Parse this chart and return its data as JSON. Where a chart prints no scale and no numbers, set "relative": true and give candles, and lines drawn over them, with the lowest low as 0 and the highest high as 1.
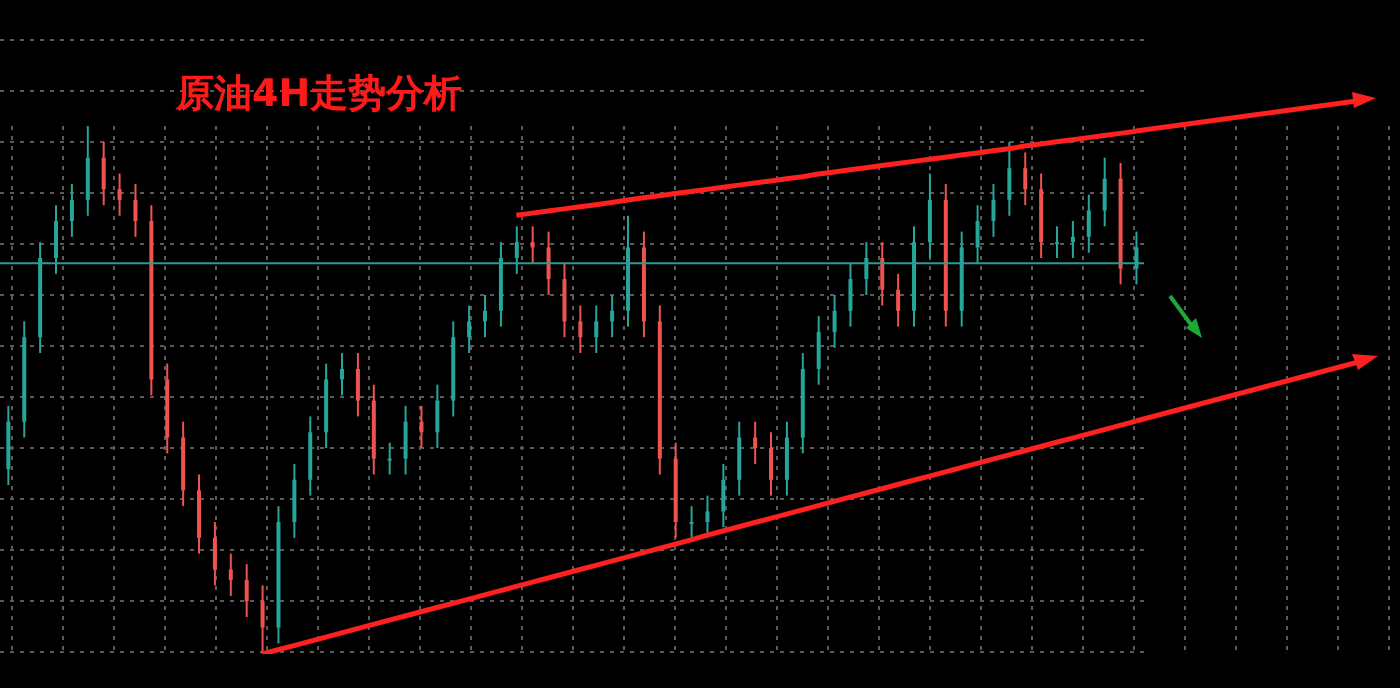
{
  "chart_data": {
    "type": "candlestick",
    "title": "原油4H走势分析",
    "relative": true,
    "grid": true,
    "categories": [
      null,
      null,
      null,
      null,
      null,
      null,
      null,
      null,
      null,
      null,
      null,
      null,
      null,
      null,
      null,
      null,
      null,
      null,
      null,
      null,
      null,
      null,
      null,
      null,
      null,
      null,
      null,
      null,
      null,
      null,
      null,
      null,
      null,
      null,
      null,
      null,
      null,
      null,
      null,
      null,
      null,
      null,
      null,
      null,
      null,
      null,
      null,
      null,
      null,
      null,
      null,
      null,
      null,
      null,
      null,
      null,
      null,
      null,
      null,
      null,
      null,
      null,
      null,
      null,
      null,
      null,
      null,
      null,
      null,
      null,
      null,
      null
    ],
    "ohlc": [
      [
        0.35,
        0.47,
        0.32,
        0.44
      ],
      [
        0.44,
        0.63,
        0.41,
        0.6
      ],
      [
        0.6,
        0.78,
        0.57,
        0.75
      ],
      [
        0.75,
        0.85,
        0.72,
        0.82
      ],
      [
        0.82,
        0.89,
        0.79,
        0.86
      ],
      [
        0.86,
        1,
        0.83,
        0.94
      ],
      [
        0.94,
        0.97,
        0.85,
        0.88
      ],
      [
        0.88,
        0.91,
        0.83,
        0.86
      ],
      [
        0.86,
        0.89,
        0.79,
        0.82
      ],
      [
        0.82,
        0.85,
        0.49,
        0.52
      ],
      [
        0.52,
        0.55,
        0.38,
        0.41
      ],
      [
        0.41,
        0.44,
        0.28,
        0.31
      ],
      [
        0.31,
        0.34,
        0.19,
        0.22
      ],
      [
        0.22,
        0.25,
        0.13,
        0.16
      ],
      [
        0.16,
        0.19,
        0.11,
        0.14
      ],
      [
        0.14,
        0.17,
        0.07,
        0.1
      ],
      [
        0.1,
        0.13,
        0,
        0.05
      ],
      [
        0.05,
        0.28,
        0.02,
        0.25
      ],
      [
        0.25,
        0.36,
        0.22,
        0.33
      ],
      [
        0.33,
        0.45,
        0.3,
        0.42
      ],
      [
        0.42,
        0.55,
        0.39,
        0.52
      ],
      [
        0.52,
        0.57,
        0.49,
        0.54
      ],
      [
        0.54,
        0.57,
        0.45,
        0.48
      ],
      [
        0.48,
        0.51,
        0.34,
        0.37
      ],
      [
        0.37,
        0.4,
        0.34,
        0.37
      ],
      [
        0.37,
        0.47,
        0.34,
        0.44
      ],
      [
        0.44,
        0.47,
        0.39,
        0.42
      ],
      [
        0.42,
        0.51,
        0.39,
        0.48
      ],
      [
        0.48,
        0.63,
        0.45,
        0.6
      ],
      [
        0.6,
        0.66,
        0.57,
        0.63
      ],
      [
        0.63,
        0.68,
        0.6,
        0.65
      ],
      [
        0.65,
        0.78,
        0.62,
        0.75
      ],
      [
        0.75,
        0.81,
        0.72,
        0.78
      ],
      [
        0.78,
        0.81,
        0.74,
        0.77
      ],
      [
        0.77,
        0.8,
        0.68,
        0.71
      ],
      [
        0.71,
        0.74,
        0.6,
        0.63
      ],
      [
        0.63,
        0.66,
        0.57,
        0.6
      ],
      [
        0.6,
        0.66,
        0.57,
        0.63
      ],
      [
        0.63,
        0.68,
        0.6,
        0.65
      ],
      [
        0.65,
        0.83,
        0.62,
        0.77
      ],
      [
        0.77,
        0.8,
        0.6,
        0.63
      ],
      [
        0.63,
        0.66,
        0.34,
        0.37
      ],
      [
        0.37,
        0.4,
        0.22,
        0.25
      ],
      [
        0.25,
        0.28,
        0.22,
        0.25
      ],
      [
        0.25,
        0.3,
        0.22,
        0.27
      ],
      [
        0.27,
        0.36,
        0.24,
        0.33
      ],
      [
        0.33,
        0.44,
        0.3,
        0.41
      ],
      [
        0.41,
        0.44,
        0.36,
        0.39
      ],
      [
        0.39,
        0.42,
        0.3,
        0.33
      ],
      [
        0.33,
        0.44,
        0.3,
        0.41
      ],
      [
        0.41,
        0.57,
        0.38,
        0.54
      ],
      [
        0.54,
        0.64,
        0.51,
        0.61
      ],
      [
        0.61,
        0.68,
        0.58,
        0.65
      ],
      [
        0.65,
        0.74,
        0.62,
        0.71
      ],
      [
        0.71,
        0.78,
        0.68,
        0.75
      ],
      [
        0.75,
        0.78,
        0.66,
        0.69
      ],
      [
        0.69,
        0.72,
        0.62,
        0.65
      ],
      [
        0.65,
        0.81,
        0.62,
        0.78
      ],
      [
        0.78,
        0.91,
        0.75,
        0.86
      ],
      [
        0.86,
        0.89,
        0.62,
        0.65
      ],
      [
        0.65,
        0.8,
        0.62,
        0.77
      ],
      [
        0.77,
        0.85,
        0.74,
        0.82
      ],
      [
        0.82,
        0.89,
        0.79,
        0.86
      ],
      [
        0.86,
        0.97,
        0.83,
        0.92
      ],
      [
        0.92,
        0.95,
        0.85,
        0.88
      ],
      [
        0.88,
        0.91,
        0.75,
        0.78
      ],
      [
        0.78,
        0.81,
        0.75,
        0.78
      ],
      [
        0.78,
        0.82,
        0.75,
        0.79
      ],
      [
        0.79,
        0.87,
        0.76,
        0.84
      ],
      [
        0.84,
        0.94,
        0.81,
        0.9
      ],
      [
        0.9,
        0.93,
        0.7,
        0.73
      ],
      [
        0.73,
        0.8,
        0.7,
        0.77
      ]
    ],
    "colors": [
      "#26a69a",
      "#26a69a",
      "#26a69a",
      "#26a69a",
      "#26a69a",
      "#26a69a",
      "#ef5350",
      "#ef5350",
      "#ef5350",
      "#ef5350",
      "#ef5350",
      "#ef5350",
      "#ef5350",
      "#ef5350",
      "#ef5350",
      "#ef5350",
      "#ef5350",
      "#26a69a",
      "#26a69a",
      "#26a69a",
      "#26a69a",
      "#26a69a",
      "#ef5350",
      "#ef5350",
      "#26a69a",
      "#26a69a",
      "#ef5350",
      "#26a69a",
      "#26a69a",
      "#26a69a",
      "#26a69a",
      "#26a69a",
      "#26a69a",
      "#ef5350",
      "#ef5350",
      "#ef5350",
      "#ef5350",
      "#26a69a",
      "#26a69a",
      "#26a69a",
      "#ef5350",
      "#ef5350",
      "#ef5350",
      "#26a69a",
      "#26a69a",
      "#26a69a",
      "#26a69a",
      "#ef5350",
      "#ef5350",
      "#26a69a",
      "#26a69a",
      "#26a69a",
      "#26a69a",
      "#26a69a",
      "#26a69a",
      "#ef5350",
      "#ef5350",
      "#26a69a",
      "#26a69a",
      "#ef5350",
      "#26a69a",
      "#26a69a",
      "#26a69a",
      "#26a69a",
      "#ef5350",
      "#ef5350",
      "#26a69a",
      "#26a69a",
      "#26a69a",
      "#26a69a",
      "#ef5350",
      "#26a69a"
    ],
    "ref_lines": [
      {
        "axis": "y",
        "value": 0.74,
        "color": "#2a9d8f"
      }
    ],
    "series": [
      {
        "type": "line",
        "color": "#ff2020",
        "values": [
          null,
          null,
          null,
          null,
          null,
          null,
          null,
          null,
          null,
          null,
          null,
          null,
          null,
          null,
          null,
          null,
          null,
          null,
          null,
          null,
          null,
          null,
          null,
          null,
          null,
          null,
          null,
          null,
          null,
          null,
          null,
          null,
          0.831,
          0.835,
          0.839,
          0.843,
          0.847,
          0.851,
          0.855,
          0.86,
          0.864,
          0.868,
          0.872,
          0.876,
          0.88,
          0.884,
          0.888,
          0.892,
          0.896,
          0.9,
          0.904,
          0.909,
          0.913,
          0.917,
          0.921,
          0.925,
          0.929,
          0.933,
          0.937,
          0.941,
          0.945,
          0.949,
          0.953,
          0.957,
          0.962,
          0.966,
          0.97,
          0.974,
          0.978,
          0.982,
          0.986,
          0.99
        ]
      },
      {
        "type": "line",
        "color": "#ff2020",
        "values": [
          null,
          null,
          null,
          null,
          null,
          null,
          null,
          null,
          null,
          null,
          null,
          null,
          null,
          null,
          null,
          null,
          0,
          0.008,
          0.016,
          0.024,
          0.032,
          0.04,
          0.048,
          0.056,
          0.064,
          0.072,
          0.08,
          0.088,
          0.096,
          0.104,
          0.112,
          0.12,
          0.128,
          0.136,
          0.144,
          0.152,
          0.16,
          0.168,
          0.176,
          0.184,
          0.192,
          0.2,
          0.208,
          0.216,
          0.225,
          0.233,
          0.241,
          0.249,
          0.257,
          0.265,
          0.273,
          0.281,
          0.289,
          0.297,
          0.305,
          0.313,
          0.321,
          0.329,
          0.337,
          0.345,
          0.353,
          0.361,
          0.369,
          0.377,
          0.385,
          0.393,
          0.401,
          0.409,
          0.417,
          0.425,
          0.433,
          0.441
        ]
      }
    ]
  }
}
